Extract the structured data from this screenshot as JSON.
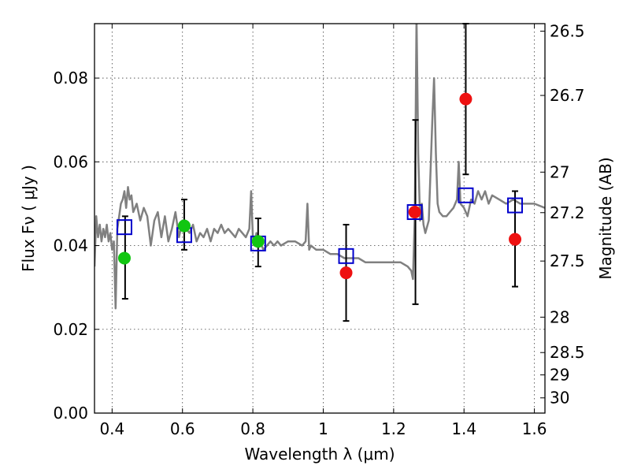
{
  "chart_data": {
    "type": "scatter",
    "title": "",
    "xlabel": "Wavelength  λ (μm)",
    "ylabel": "Flux  Fν  ( μJy )",
    "ylabel_right": "Magnitude (AB)",
    "xlim": [
      0.35,
      1.63
    ],
    "ylim": [
      0.0,
      0.093
    ],
    "grid": true,
    "x_ticks": [
      0.4,
      0.6,
      0.8,
      1.0,
      1.2,
      1.4,
      1.6
    ],
    "x_tick_labels": [
      "0.4",
      "0.6",
      "0.8",
      "1",
      "1.2",
      "1.4",
      "1.6"
    ],
    "y_ticks": [
      0.0,
      0.02,
      0.04,
      0.06,
      0.08
    ],
    "y_tick_labels": [
      "0.00",
      "0.02",
      "0.04",
      "0.06",
      "0.08"
    ],
    "mag_ticks": [
      26.5,
      26.7,
      27,
      27.2,
      27.5,
      28,
      28.5,
      29,
      30
    ],
    "mag_tick_labels": [
      "26.5",
      "26.7",
      "27",
      "27.2",
      "27.5",
      "28",
      "28.5",
      "29",
      "30"
    ],
    "colors": {
      "spectrum": "#808080",
      "green_points": "#11c611",
      "red_points": "#ee1111",
      "model_boxes": "#0000cc",
      "errorbars": "#000000"
    },
    "spectrum": {
      "x": [
        0.35,
        0.355,
        0.36,
        0.365,
        0.37,
        0.375,
        0.38,
        0.385,
        0.39,
        0.395,
        0.4,
        0.405,
        0.41,
        0.415,
        0.42,
        0.425,
        0.43,
        0.435,
        0.44,
        0.445,
        0.45,
        0.455,
        0.46,
        0.47,
        0.48,
        0.49,
        0.5,
        0.51,
        0.52,
        0.53,
        0.54,
        0.55,
        0.56,
        0.57,
        0.58,
        0.59,
        0.6,
        0.61,
        0.62,
        0.63,
        0.64,
        0.65,
        0.66,
        0.67,
        0.68,
        0.69,
        0.7,
        0.71,
        0.72,
        0.73,
        0.74,
        0.75,
        0.76,
        0.77,
        0.78,
        0.79,
        0.795,
        0.8,
        0.805,
        0.81,
        0.82,
        0.83,
        0.84,
        0.85,
        0.86,
        0.87,
        0.88,
        0.9,
        0.92,
        0.94,
        0.95,
        0.955,
        0.96,
        0.965,
        0.98,
        1.0,
        1.02,
        1.04,
        1.06,
        1.08,
        1.1,
        1.12,
        1.14,
        1.16,
        1.18,
        1.2,
        1.22,
        1.24,
        1.25,
        1.255,
        1.26,
        1.262,
        1.265,
        1.27,
        1.275,
        1.28,
        1.285,
        1.29,
        1.3,
        1.31,
        1.315,
        1.32,
        1.325,
        1.33,
        1.34,
        1.35,
        1.36,
        1.37,
        1.38,
        1.385,
        1.39,
        1.4,
        1.41,
        1.42,
        1.43,
        1.44,
        1.45,
        1.46,
        1.47,
        1.48,
        1.5,
        1.52,
        1.54,
        1.56,
        1.58,
        1.6,
        1.63
      ],
      "y": [
        0.035,
        0.047,
        0.042,
        0.045,
        0.041,
        0.044,
        0.042,
        0.045,
        0.041,
        0.043,
        0.039,
        0.041,
        0.025,
        0.044,
        0.047,
        0.05,
        0.051,
        0.053,
        0.049,
        0.054,
        0.051,
        0.052,
        0.048,
        0.05,
        0.046,
        0.049,
        0.047,
        0.04,
        0.046,
        0.048,
        0.042,
        0.047,
        0.041,
        0.044,
        0.048,
        0.042,
        0.046,
        0.044,
        0.043,
        0.045,
        0.041,
        0.043,
        0.042,
        0.044,
        0.041,
        0.044,
        0.043,
        0.045,
        0.043,
        0.044,
        0.043,
        0.042,
        0.044,
        0.043,
        0.042,
        0.044,
        0.053,
        0.042,
        0.04,
        0.043,
        0.041,
        0.039,
        0.04,
        0.041,
        0.04,
        0.041,
        0.04,
        0.041,
        0.041,
        0.04,
        0.041,
        0.05,
        0.039,
        0.04,
        0.039,
        0.039,
        0.038,
        0.038,
        0.037,
        0.037,
        0.037,
        0.036,
        0.036,
        0.036,
        0.036,
        0.036,
        0.036,
        0.035,
        0.034,
        0.032,
        0.047,
        0.065,
        0.095,
        0.062,
        0.046,
        0.05,
        0.045,
        0.043,
        0.046,
        0.07,
        0.08,
        0.062,
        0.05,
        0.048,
        0.047,
        0.047,
        0.048,
        0.049,
        0.051,
        0.06,
        0.05,
        0.049,
        0.047,
        0.051,
        0.05,
        0.053,
        0.051,
        0.053,
        0.05,
        0.052,
        0.051,
        0.05,
        0.051,
        0.05,
        0.05,
        0.05,
        0.049
      ]
    },
    "green_points": {
      "x": [
        0.435,
        0.605,
        0.815
      ],
      "y": [
        0.037,
        0.0447,
        0.041
      ]
    },
    "red_points": {
      "x": [
        1.065,
        1.26,
        1.405,
        1.545
      ],
      "y": [
        0.0335,
        0.048,
        0.075,
        0.0415
      ]
    },
    "model_boxes": {
      "x": [
        0.435,
        0.605,
        0.815,
        1.065,
        1.26,
        1.405,
        1.545
      ],
      "y": [
        0.0444,
        0.0425,
        0.0405,
        0.0375,
        0.048,
        0.052,
        0.0496
      ]
    },
    "errorbars": [
      {
        "x": 0.437,
        "low": 0.0273,
        "high": 0.047
      },
      {
        "x": 0.605,
        "low": 0.039,
        "high": 0.051
      },
      {
        "x": 0.815,
        "low": 0.035,
        "high": 0.0465
      },
      {
        "x": 1.065,
        "low": 0.022,
        "high": 0.045
      },
      {
        "x": 1.262,
        "low": 0.026,
        "high": 0.07
      },
      {
        "x": 1.405,
        "low": 0.057,
        "high": 0.093
      },
      {
        "x": 1.545,
        "low": 0.0302,
        "high": 0.053
      }
    ]
  }
}
